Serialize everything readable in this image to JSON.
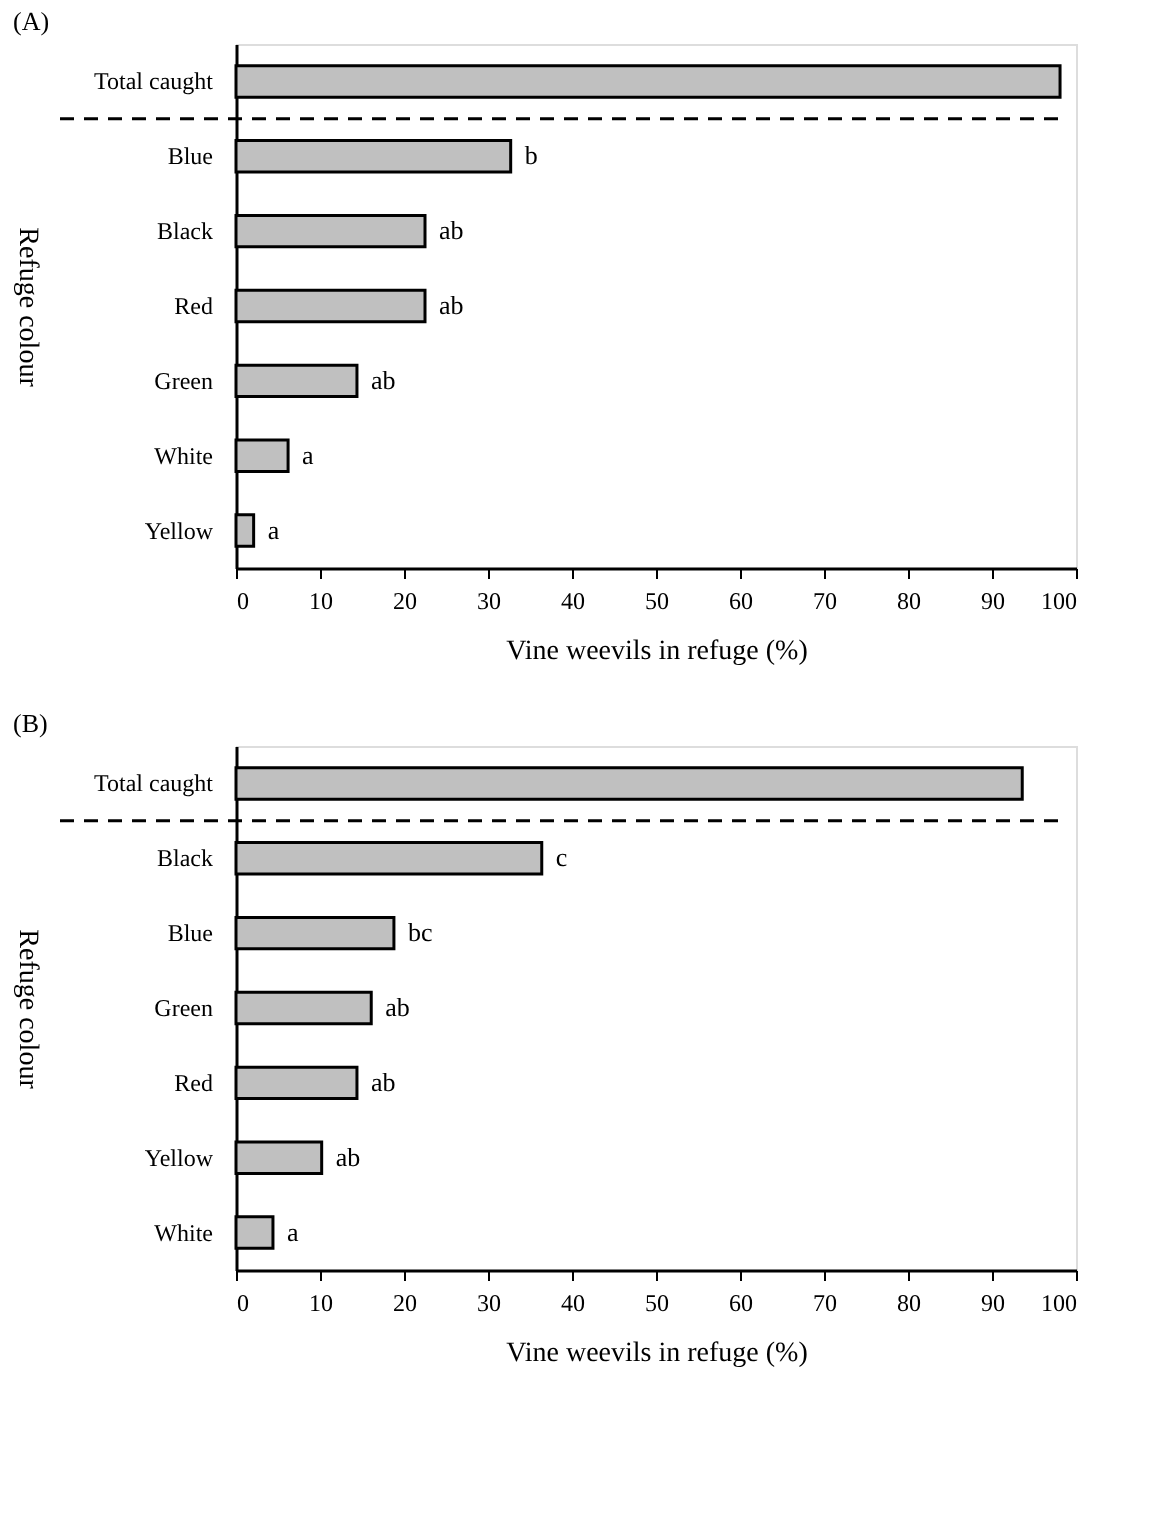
{
  "chart_data": [
    {
      "type": "bar",
      "orientation": "horizontal",
      "title": "(A)",
      "xlabel": "Vine weevils in refuge (%)",
      "ylabel": "Refuge colour",
      "categories": [
        "Total caught",
        "Blue",
        "Black",
        "Red",
        "Green",
        "White",
        "Yellow"
      ],
      "values": [
        98.1,
        32.7,
        22.5,
        22.5,
        14.4,
        6.2,
        2.1
      ],
      "value_labels": [
        null,
        "b",
        "ab",
        "ab",
        "ab",
        "a",
        "a"
      ],
      "color": "#c0c0c0",
      "xlim": [
        0,
        100
      ],
      "xticks": [
        0,
        10,
        20,
        30,
        40,
        50,
        60,
        70,
        80,
        90,
        100
      ],
      "grid": false,
      "ref_lines": [
        {
          "axis": "y",
          "value": "Total caught",
          "line_style": "dashed",
          "color": "#000000"
        }
      ]
    },
    {
      "type": "bar",
      "orientation": "horizontal",
      "title": "(B)",
      "xlabel": "Vine weevils in refuge (%)",
      "ylabel": "Refuge colour",
      "categories": [
        "Total caught",
        "Black",
        "Blue",
        "Green",
        "Red",
        "Yellow",
        "White"
      ],
      "values": [
        93.6,
        36.4,
        18.8,
        16.1,
        14.4,
        10.2,
        4.4
      ],
      "value_labels": [
        null,
        "c",
        "bc",
        "ab",
        "ab",
        "ab",
        "a"
      ],
      "color": "#c0c0c0",
      "xlim": [
        0,
        100
      ],
      "xticks": [
        0,
        10,
        20,
        30,
        40,
        50,
        60,
        70,
        80,
        90,
        100
      ],
      "grid": false,
      "ref_lines": [
        {
          "axis": "y",
          "value": "Total caught",
          "line_style": "dashed",
          "color": "#000000"
        }
      ]
    }
  ]
}
